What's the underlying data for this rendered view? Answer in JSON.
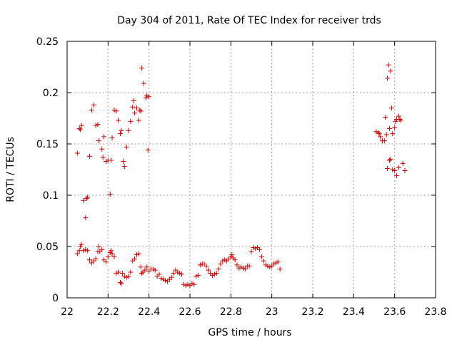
{
  "chart_data": {
    "type": "scatter",
    "title": "Day 304 of 2011, Rate Of TEC Index for receiver trds",
    "xlabel": "GPS time / hours",
    "ylabel": "ROTI / TECUs",
    "xlim": [
      22,
      23.8
    ],
    "ylim": [
      0,
      0.25
    ],
    "xticks": [
      22,
      22.2,
      22.4,
      22.6,
      22.8,
      23,
      23.2,
      23.4,
      23.6,
      23.8
    ],
    "xtick_labels": [
      "22",
      "22.2",
      "22.4",
      "22.6",
      "22.8",
      "23",
      "23.2",
      "23.4",
      "23.6",
      "23.8"
    ],
    "yticks": [
      0,
      0.05,
      0.1,
      0.15,
      0.2,
      0.25
    ],
    "ytick_labels": [
      "0",
      "0.05",
      "0.1",
      "0.15",
      "0.2",
      "0.25"
    ],
    "grid": true,
    "marker": "+",
    "color": "#cc0000",
    "series": [
      {
        "points": [
          [
            22.05,
            0.141
          ],
          [
            22.06,
            0.165
          ],
          [
            22.065,
            0.164
          ],
          [
            22.07,
            0.168
          ],
          [
            22.08,
            0.095
          ],
          [
            22.09,
            0.078
          ],
          [
            22.095,
            0.097
          ],
          [
            22.1,
            0.098
          ],
          [
            22.11,
            0.138
          ],
          [
            22.12,
            0.183
          ],
          [
            22.13,
            0.188
          ],
          [
            22.14,
            0.168
          ],
          [
            22.15,
            0.169
          ],
          [
            22.155,
            0.153
          ],
          [
            22.17,
            0.145
          ],
          [
            22.175,
            0.137
          ],
          [
            22.18,
            0.157
          ],
          [
            22.19,
            0.133
          ],
          [
            22.2,
            0.134
          ],
          [
            22.21,
            0.101
          ],
          [
            22.215,
            0.134
          ],
          [
            22.22,
            0.156
          ],
          [
            22.23,
            0.183
          ],
          [
            22.24,
            0.182
          ],
          [
            22.25,
            0.173
          ],
          [
            22.26,
            0.16
          ],
          [
            22.265,
            0.163
          ],
          [
            22.275,
            0.133
          ],
          [
            22.28,
            0.128
          ],
          [
            22.29,
            0.147
          ],
          [
            22.3,
            0.163
          ],
          [
            22.31,
            0.172
          ],
          [
            22.32,
            0.186
          ],
          [
            22.325,
            0.192
          ],
          [
            22.33,
            0.18
          ],
          [
            22.34,
            0.185
          ],
          [
            22.35,
            0.173
          ],
          [
            22.355,
            0.183
          ],
          [
            22.36,
            0.182
          ],
          [
            22.365,
            0.224
          ],
          [
            22.375,
            0.209
          ],
          [
            22.385,
            0.195
          ],
          [
            22.39,
            0.197
          ],
          [
            22.395,
            0.144
          ],
          [
            22.4,
            0.196
          ],
          [
            22.05,
            0.043
          ],
          [
            22.06,
            0.046
          ],
          [
            22.065,
            0.05
          ],
          [
            22.07,
            0.052
          ],
          [
            22.08,
            0.046
          ],
          [
            22.09,
            0.047
          ],
          [
            22.1,
            0.046
          ],
          [
            22.11,
            0.037
          ],
          [
            22.12,
            0.034
          ],
          [
            22.13,
            0.036
          ],
          [
            22.14,
            0.038
          ],
          [
            22.15,
            0.045
          ],
          [
            22.155,
            0.05
          ],
          [
            22.16,
            0.045
          ],
          [
            22.17,
            0.047
          ],
          [
            22.18,
            0.037
          ],
          [
            22.19,
            0.035
          ],
          [
            22.2,
            0.04
          ],
          [
            22.21,
            0.044
          ],
          [
            22.215,
            0.046
          ],
          [
            22.22,
            0.043
          ],
          [
            22.23,
            0.04
          ],
          [
            22.24,
            0.024
          ],
          [
            22.25,
            0.025
          ],
          [
            22.26,
            0.015
          ],
          [
            22.265,
            0.014
          ],
          [
            22.27,
            0.024
          ],
          [
            22.28,
            0.021
          ],
          [
            22.29,
            0.02
          ],
          [
            22.3,
            0.021
          ],
          [
            22.31,
            0.025
          ],
          [
            22.32,
            0.036
          ],
          [
            22.33,
            0.038
          ],
          [
            22.34,
            0.042
          ],
          [
            22.35,
            0.043
          ],
          [
            22.36,
            0.03
          ],
          [
            22.365,
            0.024
          ],
          [
            22.37,
            0.025
          ],
          [
            22.38,
            0.027
          ],
          [
            22.39,
            0.03
          ],
          [
            22.4,
            0.026
          ],
          [
            22.41,
            0.028
          ],
          [
            22.42,
            0.028
          ],
          [
            22.43,
            0.027
          ],
          [
            22.44,
            0.021
          ],
          [
            22.45,
            0.023
          ],
          [
            22.46,
            0.019
          ],
          [
            22.47,
            0.018
          ],
          [
            22.48,
            0.017
          ],
          [
            22.49,
            0.016
          ],
          [
            22.5,
            0.018
          ],
          [
            22.51,
            0.02
          ],
          [
            22.52,
            0.024
          ],
          [
            22.53,
            0.027
          ],
          [
            22.54,
            0.025
          ],
          [
            22.55,
            0.024
          ],
          [
            22.56,
            0.023
          ],
          [
            22.57,
            0.013
          ],
          [
            22.58,
            0.012
          ],
          [
            22.59,
            0.013
          ],
          [
            22.6,
            0.012
          ],
          [
            22.61,
            0.014
          ],
          [
            22.62,
            0.013
          ],
          [
            22.63,
            0.021
          ],
          [
            22.64,
            0.022
          ],
          [
            22.65,
            0.032
          ],
          [
            22.66,
            0.033
          ],
          [
            22.67,
            0.033
          ],
          [
            22.68,
            0.031
          ],
          [
            22.69,
            0.027
          ],
          [
            22.7,
            0.024
          ],
          [
            22.71,
            0.022
          ],
          [
            22.72,
            0.023
          ],
          [
            22.73,
            0.024
          ],
          [
            22.74,
            0.028
          ],
          [
            22.75,
            0.033
          ],
          [
            22.76,
            0.036
          ],
          [
            22.77,
            0.037
          ],
          [
            22.78,
            0.036
          ],
          [
            22.79,
            0.038
          ],
          [
            22.8,
            0.04
          ],
          [
            22.805,
            0.042
          ],
          [
            22.81,
            0.039
          ],
          [
            22.82,
            0.037
          ],
          [
            22.83,
            0.032
          ],
          [
            22.84,
            0.029
          ],
          [
            22.85,
            0.03
          ],
          [
            22.86,
            0.029
          ],
          [
            22.87,
            0.028
          ],
          [
            22.88,
            0.031
          ],
          [
            22.89,
            0.031
          ],
          [
            22.9,
            0.045
          ],
          [
            22.91,
            0.049
          ],
          [
            22.92,
            0.048
          ],
          [
            22.93,
            0.049
          ],
          [
            22.94,
            0.047
          ],
          [
            22.95,
            0.04
          ],
          [
            22.96,
            0.036
          ],
          [
            22.97,
            0.032
          ],
          [
            22.98,
            0.031
          ],
          [
            22.99,
            0.03
          ],
          [
            23.0,
            0.031
          ],
          [
            23.01,
            0.033
          ],
          [
            23.02,
            0.034
          ],
          [
            23.03,
            0.035
          ],
          [
            23.04,
            0.028
          ],
          [
            23.51,
            0.162
          ],
          [
            23.52,
            0.161
          ],
          [
            23.525,
            0.16
          ],
          [
            23.53,
            0.157
          ],
          [
            23.54,
            0.153
          ],
          [
            23.55,
            0.153
          ],
          [
            23.555,
            0.176
          ],
          [
            23.56,
            0.159
          ],
          [
            23.565,
            0.214
          ],
          [
            23.57,
            0.227
          ],
          [
            23.575,
            0.165
          ],
          [
            23.58,
            0.221
          ],
          [
            23.585,
            0.185
          ],
          [
            23.59,
            0.16
          ],
          [
            23.6,
            0.166
          ],
          [
            23.605,
            0.172
          ],
          [
            23.61,
            0.174
          ],
          [
            23.62,
            0.177
          ],
          [
            23.625,
            0.174
          ],
          [
            23.63,
            0.173
          ],
          [
            23.565,
            0.126
          ],
          [
            23.575,
            0.134
          ],
          [
            23.58,
            0.135
          ],
          [
            23.59,
            0.125
          ],
          [
            23.6,
            0.124
          ],
          [
            23.61,
            0.119
          ],
          [
            23.62,
            0.127
          ],
          [
            23.64,
            0.131
          ],
          [
            23.65,
            0.124
          ]
        ]
      }
    ]
  }
}
